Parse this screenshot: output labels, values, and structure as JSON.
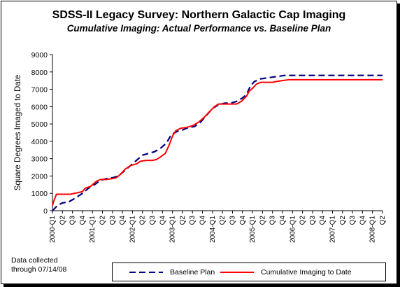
{
  "chart_data": {
    "type": "line",
    "title": "SDSS-II Legacy Survey:  Northern Galactic Cap Imaging",
    "subtitle": "Cumulative Imaging: Actual Performance vs. Baseline Plan",
    "xlabel": "",
    "ylabel": "Square Degrees Imaged to Date",
    "ylim": [
      0,
      9000
    ],
    "yticks": [
      0,
      1000,
      2000,
      3000,
      4000,
      5000,
      6000,
      7000,
      8000,
      9000
    ],
    "xlim": [
      2000.0,
      2008.25
    ],
    "categories": [
      "2000-Q1",
      "Q2",
      "Q3",
      "Q4",
      "2001-Q1",
      "Q2",
      "Q3",
      "Q4",
      "2002-Q1",
      "Q2",
      "Q3",
      "Q4",
      "2003-Q1",
      "Q2",
      "Q3",
      "Q4",
      "2004-Q1",
      "Q2",
      "Q3",
      "Q4",
      "2005-Q1",
      "Q2",
      "Q3",
      "Q4",
      "2006-Q1",
      "Q2",
      "Q3",
      "Q4",
      "2007-Q1",
      "Q2",
      "Q3",
      "Q4",
      "2008-Q1",
      "Q2"
    ],
    "grid": false,
    "legend_position": "bottom",
    "series": [
      {
        "name": "Baseline Plan",
        "color": "#000080",
        "style": "dashed",
        "points": [
          [
            2000.0,
            0
          ],
          [
            2000.125,
            300
          ],
          [
            2000.25,
            450
          ],
          [
            2000.4,
            500
          ],
          [
            2000.55,
            700
          ],
          [
            2000.75,
            1000
          ],
          [
            2000.9,
            1300
          ],
          [
            2001.05,
            1500
          ],
          [
            2001.2,
            1750
          ],
          [
            2001.35,
            1850
          ],
          [
            2001.5,
            1900
          ],
          [
            2001.65,
            2000
          ],
          [
            2001.8,
            2300
          ],
          [
            2001.95,
            2600
          ],
          [
            2002.1,
            2900
          ],
          [
            2002.25,
            3200
          ],
          [
            2002.4,
            3300
          ],
          [
            2002.55,
            3400
          ],
          [
            2002.7,
            3600
          ],
          [
            2002.85,
            3900
          ],
          [
            2002.95,
            4300
          ],
          [
            2003.05,
            4500
          ],
          [
            2003.15,
            4600
          ],
          [
            2003.25,
            4650
          ],
          [
            2003.4,
            4800
          ],
          [
            2003.55,
            4850
          ],
          [
            2003.7,
            5100
          ],
          [
            2003.85,
            5500
          ],
          [
            2004.0,
            5900
          ],
          [
            2004.15,
            6100
          ],
          [
            2004.3,
            6200
          ],
          [
            2004.45,
            6200
          ],
          [
            2004.6,
            6300
          ],
          [
            2004.75,
            6500
          ],
          [
            2004.85,
            6700
          ],
          [
            2004.95,
            7200
          ],
          [
            2005.05,
            7450
          ],
          [
            2005.2,
            7600
          ],
          [
            2005.35,
            7650
          ],
          [
            2005.5,
            7700
          ],
          [
            2005.65,
            7750
          ],
          [
            2005.8,
            7800
          ],
          [
            2006.0,
            7800
          ],
          [
            2007.0,
            7800
          ],
          [
            2008.25,
            7800
          ]
        ]
      },
      {
        "name": "Cumulative Imaging to Date",
        "color": "#ff0000",
        "style": "solid",
        "points": [
          [
            2000.0,
            300
          ],
          [
            2000.04,
            600
          ],
          [
            2000.1,
            950
          ],
          [
            2000.25,
            950
          ],
          [
            2000.45,
            950
          ],
          [
            2000.55,
            1000
          ],
          [
            2000.75,
            1100
          ],
          [
            2000.82,
            1300
          ],
          [
            2000.95,
            1400
          ],
          [
            2001.1,
            1700
          ],
          [
            2001.2,
            1800
          ],
          [
            2001.35,
            1800
          ],
          [
            2001.5,
            1850
          ],
          [
            2001.6,
            1900
          ],
          [
            2001.7,
            2100
          ],
          [
            2001.82,
            2400
          ],
          [
            2001.95,
            2600
          ],
          [
            2002.1,
            2700
          ],
          [
            2002.2,
            2850
          ],
          [
            2002.35,
            2900
          ],
          [
            2002.5,
            2900
          ],
          [
            2002.6,
            2950
          ],
          [
            2002.7,
            3100
          ],
          [
            2002.82,
            3300
          ],
          [
            2002.92,
            3800
          ],
          [
            2003.0,
            4300
          ],
          [
            2003.08,
            4600
          ],
          [
            2003.2,
            4750
          ],
          [
            2003.35,
            4800
          ],
          [
            2003.5,
            4900
          ],
          [
            2003.65,
            5100
          ],
          [
            2003.8,
            5400
          ],
          [
            2003.92,
            5700
          ],
          [
            2004.05,
            6000
          ],
          [
            2004.15,
            6150
          ],
          [
            2004.3,
            6150
          ],
          [
            2004.45,
            6150
          ],
          [
            2004.6,
            6150
          ],
          [
            2004.72,
            6300
          ],
          [
            2004.85,
            6600
          ],
          [
            2004.92,
            6900
          ],
          [
            2005.0,
            7050
          ],
          [
            2005.1,
            7300
          ],
          [
            2005.2,
            7400
          ],
          [
            2005.35,
            7400
          ],
          [
            2005.5,
            7400
          ],
          [
            2005.6,
            7450
          ],
          [
            2005.75,
            7500
          ],
          [
            2005.9,
            7550
          ],
          [
            2006.0,
            7550
          ],
          [
            2007.0,
            7550
          ],
          [
            2008.25,
            7550
          ]
        ]
      }
    ]
  },
  "footnote": {
    "line1": "Data collected",
    "line2": "through 07/14/08"
  },
  "legend": {
    "baseline_label": "Baseline Plan",
    "actual_label": "Cumulative Imaging to Date"
  }
}
